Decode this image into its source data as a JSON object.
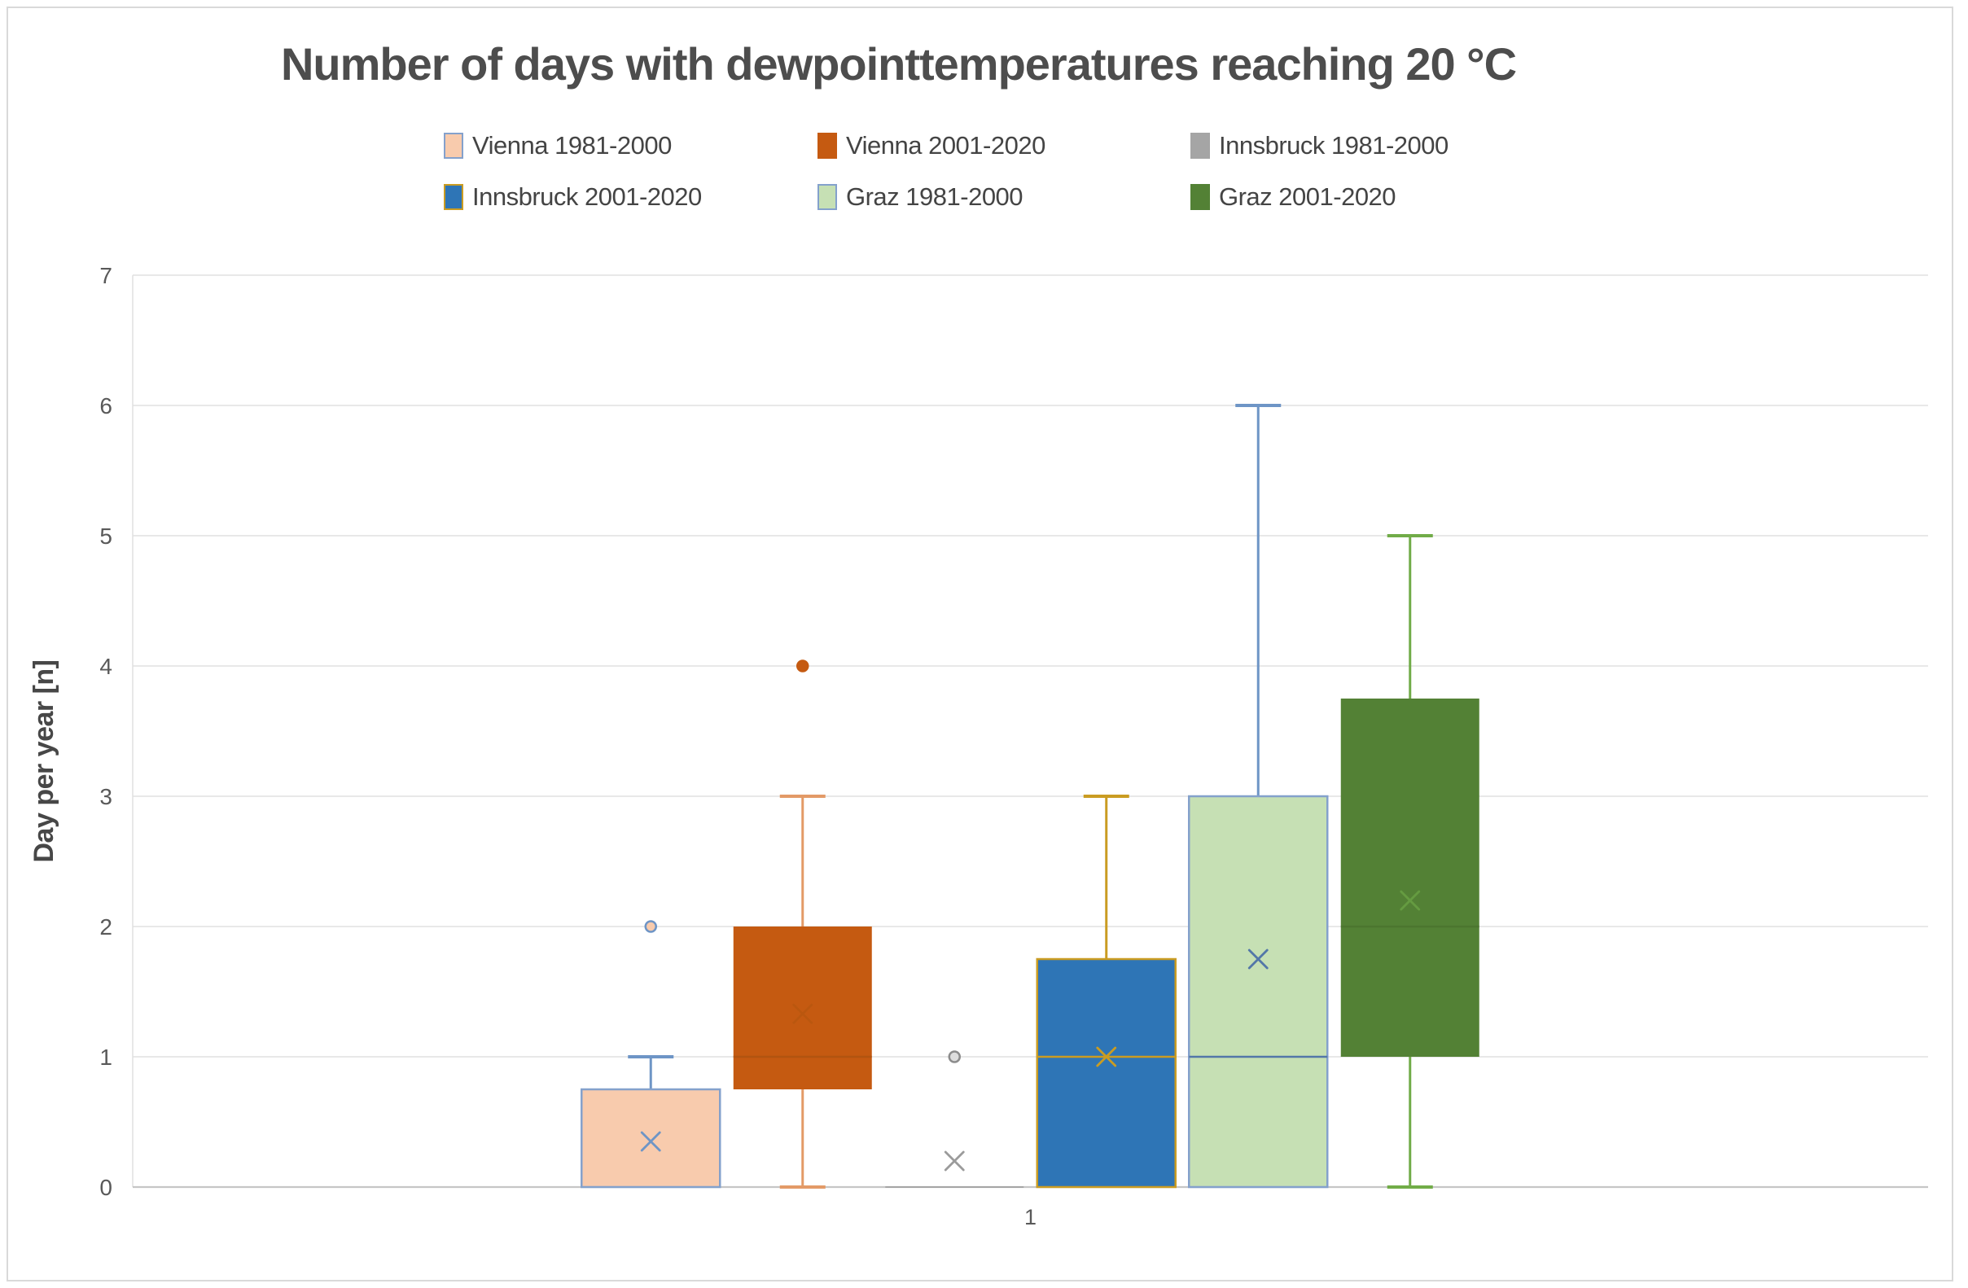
{
  "chart_data": {
    "type": "boxplot",
    "title": "Number of days with dewpointtemperatures reaching 20 °C",
    "y_axis_title": "Day per year [n]",
    "x_tick_labels": [
      "1"
    ],
    "y_ticks": [
      "0",
      "1",
      "2",
      "3",
      "4",
      "5",
      "6",
      "7"
    ],
    "ylim": [
      0,
      7
    ],
    "grid": true,
    "legend_position": "top",
    "legend_rows": [
      [
        0,
        1,
        2
      ],
      [
        3,
        4,
        5
      ]
    ],
    "series": [
      {
        "name": "Vienna 1981-2000",
        "fill": "#F8CBAD",
        "box_stroke": "#84A1CC",
        "line": "#6E95C6",
        "whisker_low": 0,
        "q1": 0,
        "median": null,
        "q3": 0.75,
        "whisker_high": 1,
        "mean": 0.35,
        "outliers": [
          {
            "value": 2,
            "fill": "#F8CBAD",
            "stroke": "#6E95C6"
          }
        ]
      },
      {
        "name": "Vienna 2001-2020",
        "fill": "#C55A11",
        "box_stroke": null,
        "line": "#E39A67",
        "whisker_low": 0,
        "q1": 0.75,
        "median": 1,
        "median_color": "#AA5110",
        "median_opacity": 0.7,
        "q3": 2,
        "whisker_high": 3,
        "mean": 1.33,
        "mean_color": "#B1560F",
        "mean_opacity": 0.55,
        "outliers": [
          {
            "value": 4,
            "fill": "#C55A11",
            "stroke": "#C55A11"
          }
        ]
      },
      {
        "name": "Innsbruck 1981-2000",
        "fill": "#A5A5A5",
        "box_stroke": null,
        "line": "#A5A5A5",
        "whisker_low": 0,
        "q1": 0,
        "median": null,
        "q3": 0,
        "whisker_high": 0,
        "mean": 0.2,
        "mean_color": "#9B9B9B",
        "outliers": [
          {
            "value": 1,
            "fill": "#DDDDDD",
            "stroke": "#8C8C8C"
          }
        ]
      },
      {
        "name": "Innsbruck 2001-2020",
        "fill": "#2E75B6",
        "box_stroke": "#CA9C22",
        "line": "#CA9C22",
        "whisker_low": 0,
        "q1": 0,
        "median": 1,
        "median_color": "#CA9C22",
        "q3": 1.75,
        "whisker_high": 3,
        "mean": 1.0,
        "mean_color": "#CA9C22",
        "outliers": []
      },
      {
        "name": "Graz 1981-2000",
        "fill": "#C6E0B4",
        "box_stroke": "#84A1CC",
        "line": "#6E95C6",
        "whisker_low": 0,
        "q1": 0,
        "median": 1,
        "median_color": "#5377A8",
        "q3": 3,
        "whisker_high": 6,
        "mean": 1.75,
        "mean_color": "#5377A8",
        "outliers": []
      },
      {
        "name": "Graz 2001-2020",
        "fill": "#538135",
        "box_stroke": null,
        "line": "#71AC48",
        "whisker_low": 0,
        "q1": 1,
        "median": 2,
        "median_color": "#48702C",
        "median_opacity": 0.6,
        "q3": 3.75,
        "whisker_high": 5,
        "mean": 2.2,
        "mean_color": "#69A043",
        "mean_opacity": 0.85,
        "outliers": []
      }
    ],
    "colors": {
      "gridline": "#E0E0E0",
      "axis_line": "#C6C6C6",
      "tick_text": "#595959",
      "frame": "#D9D9D9"
    }
  }
}
